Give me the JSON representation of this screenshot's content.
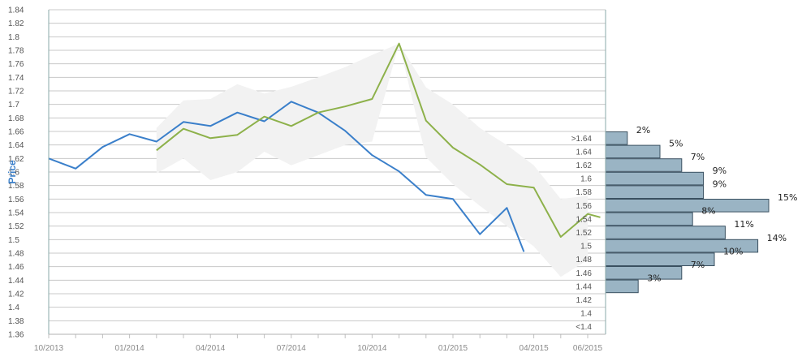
{
  "colors": {
    "actual": "#3a7fca",
    "forecast": "#8db14a",
    "band": "#f2f2f2",
    "bar_fill": "#9ab4c4",
    "bar_stroke": "#3a5060",
    "ylabel": "#3a7fca"
  },
  "chart_data": {
    "type": "line",
    "ylabel": "Price",
    "ylim": [
      1.36,
      1.84
    ],
    "y_ticks": [
      "1.36",
      "1.38",
      "1.4",
      "1.42",
      "1.44",
      "1.46",
      "1.48",
      "1.5",
      "1.52",
      "1.54",
      "1.56",
      "1.58",
      "1.6",
      "1.62",
      "1.64",
      "1.66",
      "1.68",
      "1.7",
      "1.72",
      "1.74",
      "1.76",
      "1.78",
      "1.8",
      "1.82",
      "1.84"
    ],
    "x_ticks": [
      "10/2013",
      "01/2014",
      "04/2014",
      "07/2014",
      "10/2014",
      "01/2015",
      "04/2015",
      "06/2015"
    ],
    "grid": true,
    "series": [
      {
        "key": "actual",
        "x": [
          "2013-10",
          "2013-11",
          "2013-12",
          "2014-01",
          "2014-02",
          "2014-03",
          "2014-04",
          "2014-05",
          "2014-06",
          "2014-07",
          "2014-08",
          "2014-09",
          "2014-10",
          "2014-11",
          "2014-12",
          "2015-01",
          "2015-02",
          "2015-03",
          "2015-03-20"
        ],
        "values": [
          1.62,
          1.605,
          1.637,
          1.656,
          1.645,
          1.674,
          1.668,
          1.688,
          1.675,
          1.704,
          1.688,
          1.661,
          1.625,
          1.601,
          1.566,
          1.56,
          1.508,
          1.547,
          1.482
        ]
      },
      {
        "key": "forecast",
        "x": [
          "2014-02",
          "2014-03",
          "2014-04",
          "2014-05",
          "2014-06",
          "2014-07",
          "2014-08",
          "2014-09",
          "2014-10",
          "2014-11",
          "2014-12",
          "2015-01",
          "2015-02",
          "2015-03",
          "2015-04",
          "2015-05",
          "2015-06",
          "2015-06-15"
        ],
        "values": [
          1.632,
          1.664,
          1.65,
          1.655,
          1.682,
          1.668,
          1.688,
          1.697,
          1.708,
          1.79,
          1.676,
          1.636,
          1.611,
          1.582,
          1.577,
          1.504,
          1.538,
          1.533
        ]
      }
    ],
    "band": {
      "key": "forecast-range",
      "x": [
        "2014-02",
        "2014-03",
        "2014-04",
        "2014-05",
        "2014-06",
        "2014-07",
        "2014-08",
        "2014-09",
        "2014-10",
        "2014-11",
        "2014-12",
        "2015-01",
        "2015-02",
        "2015-03",
        "2015-04",
        "2015-05",
        "2015-06"
      ],
      "upper": [
        1.665,
        1.706,
        1.708,
        1.73,
        1.716,
        1.726,
        1.74,
        1.755,
        1.773,
        1.79,
        1.725,
        1.7,
        1.665,
        1.64,
        1.61,
        1.56,
        1.565
      ],
      "lower": [
        1.598,
        1.62,
        1.588,
        1.6,
        1.63,
        1.61,
        1.625,
        1.64,
        1.645,
        1.79,
        1.622,
        1.582,
        1.55,
        1.52,
        1.49,
        1.445,
        1.47
      ]
    },
    "histogram": {
      "bins": [
        {
          "label": ">1.64",
          "percent": 2,
          "pct_label": "2%"
        },
        {
          "label": "1.64",
          "percent": 5,
          "pct_label": "5%"
        },
        {
          "label": "1.62",
          "percent": 7,
          "pct_label": "7%"
        },
        {
          "label": "1.6",
          "percent": 9,
          "pct_label": "9%"
        },
        {
          "label": "1.58",
          "percent": 9,
          "pct_label": "9%"
        },
        {
          "label": "1.56",
          "percent": 15,
          "pct_label": "15%"
        },
        {
          "label": "1.54",
          "percent": 8,
          "pct_label": "8%"
        },
        {
          "label": "1.52",
          "percent": 11,
          "pct_label": "11%"
        },
        {
          "label": "1.5",
          "percent": 14,
          "pct_label": "14%"
        },
        {
          "label": "1.48",
          "percent": 10,
          "pct_label": "10%"
        },
        {
          "label": "1.46",
          "percent": 7,
          "pct_label": "7%"
        },
        {
          "label": "1.44",
          "percent": 3,
          "pct_label": "3%"
        },
        {
          "label": "1.42",
          "percent": null,
          "pct_label": null
        },
        {
          "label": "1.4",
          "percent": null,
          "pct_label": null
        },
        {
          "label": "<1.4",
          "percent": null,
          "pct_label": null
        }
      ]
    }
  }
}
